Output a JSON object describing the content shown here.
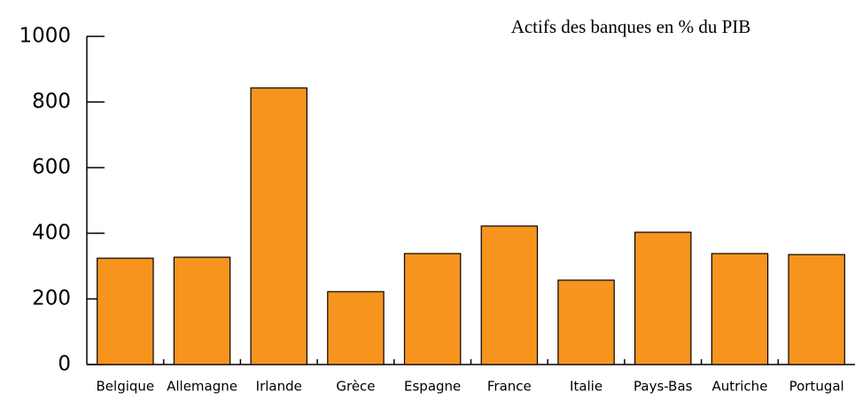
{
  "chart_data": {
    "type": "bar",
    "title": "Actifs des banques en % du PIB",
    "categories": [
      "Belgique",
      "Allemagne",
      "Irlande",
      "Grèce",
      "Espagne",
      "France",
      "Italie",
      "Pays-Bas",
      "Autriche",
      "Portugal"
    ],
    "values": [
      324,
      327,
      843,
      222,
      338,
      422,
      257,
      403,
      338,
      335
    ],
    "color": "#f7941d",
    "ylim": [
      0,
      1000
    ],
    "yticks": [
      0,
      200,
      400,
      600,
      800,
      1000
    ],
    "grid": false
  }
}
